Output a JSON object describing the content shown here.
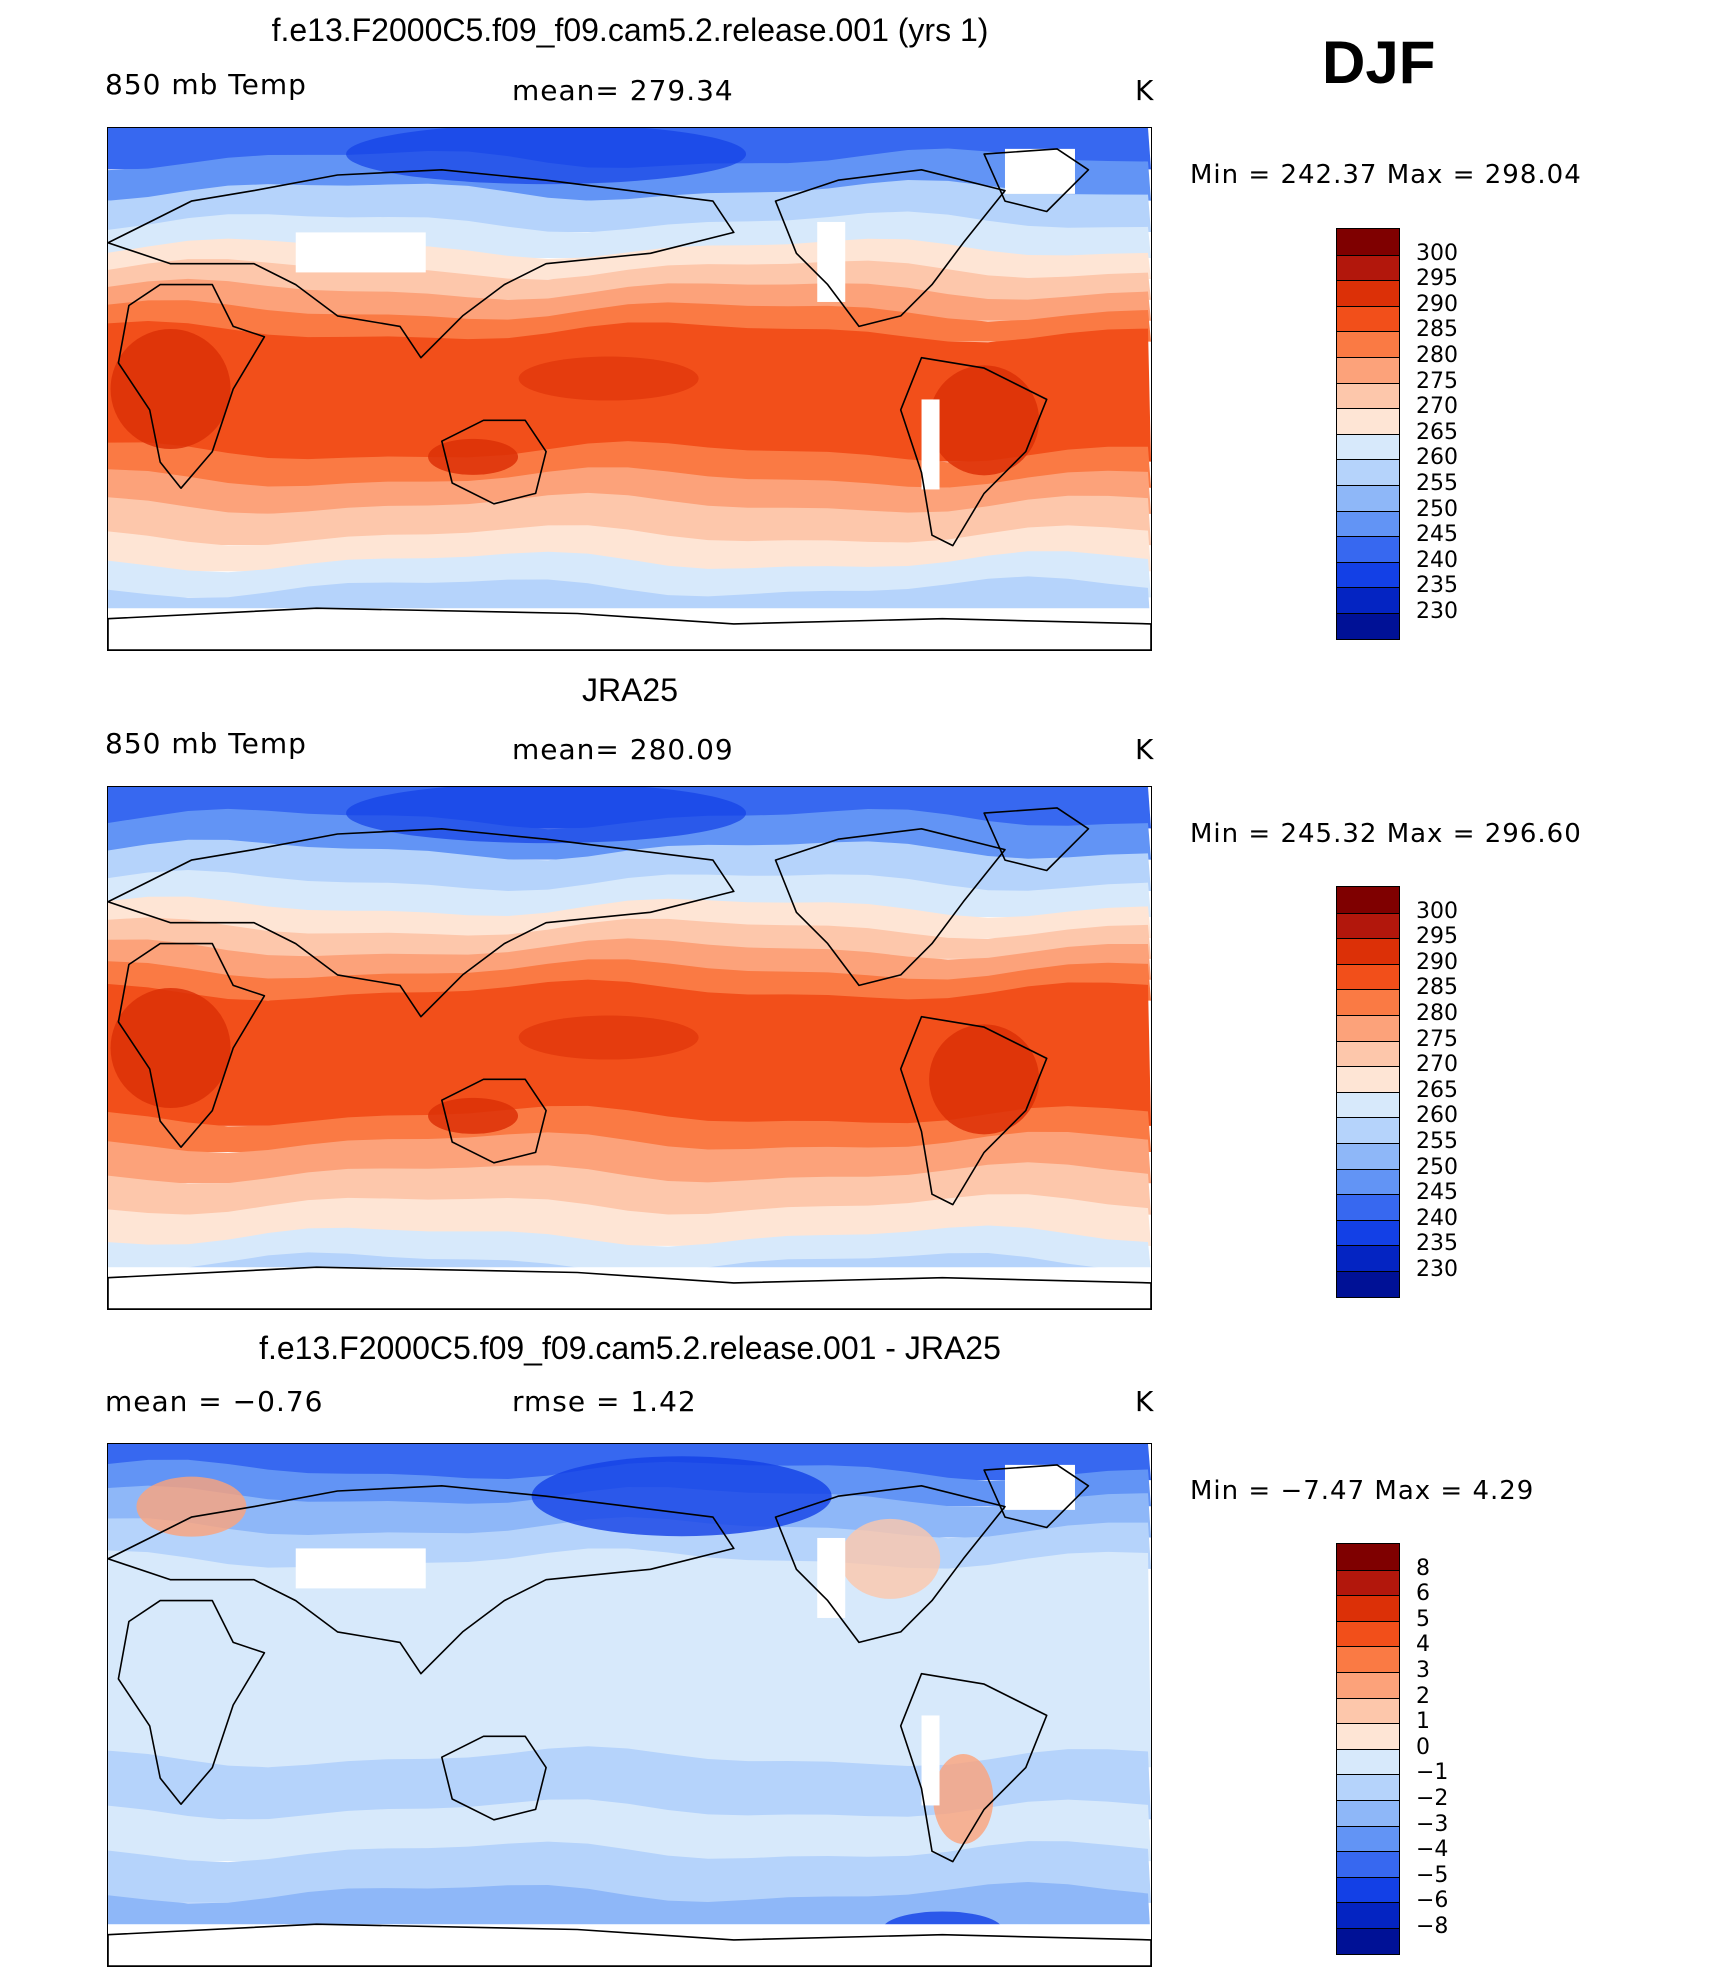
{
  "season": "DJF",
  "colors": {
    "temp_scale": [
      "#7f0000",
      "#b2170c",
      "#dc3007",
      "#f24f1a",
      "#fa7a44",
      "#fca27a",
      "#fdc7ab",
      "#fee5d5",
      "#d7e9fb",
      "#b5d3fb",
      "#8eb7f8",
      "#6294f5",
      "#3768f0",
      "#1340e6",
      "#0424c2",
      "#001196"
    ],
    "diff_scale": [
      "#7f0000",
      "#b2170c",
      "#dc3007",
      "#f24f1a",
      "#fa7a44",
      "#fca27a",
      "#fdc7ab",
      "#fee5d5",
      "#d7e9fb",
      "#b5d3fb",
      "#8eb7f8",
      "#6294f5",
      "#3768f0",
      "#1340e6",
      "#0424c2",
      "#001196"
    ]
  },
  "panels": [
    {
      "title": "f.e13.F2000C5.f09_f09.cam5.2.release.001 (yrs 1)",
      "left_label": "850 mb Temp",
      "center_label": "mean= 279.34",
      "units": "K",
      "min_max": "Min = 242.37 Max = 298.04",
      "kind": "temp"
    },
    {
      "title": "JRA25",
      "left_label": "850 mb Temp",
      "center_label": "mean= 280.09",
      "units": "K",
      "min_max": "Min = 245.32 Max = 296.60",
      "kind": "temp"
    },
    {
      "title": "f.e13.F2000C5.f09_f09.cam5.2.release.001 - JRA25",
      "left_label": "mean =   −0.76",
      "center_label": "rmse =     1.42",
      "units": "K",
      "min_max": "Min =   −7.47 Max =     4.29",
      "kind": "diff"
    }
  ],
  "chart_data": [
    {
      "type": "heatmap",
      "title": "f.e13.F2000C5.f09_f09.cam5.2.release.001 (yrs 1)",
      "variable": "850 mb Temp",
      "units": "K",
      "mean": 279.34,
      "min": 242.37,
      "max": 298.04,
      "colorbar_levels": [
        300,
        295,
        290,
        285,
        280,
        275,
        270,
        265,
        260,
        255,
        250,
        245,
        240,
        235,
        230
      ]
    },
    {
      "type": "heatmap",
      "title": "JRA25",
      "variable": "850 mb Temp",
      "units": "K",
      "mean": 280.09,
      "min": 245.32,
      "max": 296.6,
      "colorbar_levels": [
        300,
        295,
        290,
        285,
        280,
        275,
        270,
        265,
        260,
        255,
        250,
        245,
        240,
        235,
        230
      ]
    },
    {
      "type": "heatmap",
      "title": "f.e13.F2000C5.f09_f09.cam5.2.release.001 - JRA25",
      "units": "K",
      "mean": -0.76,
      "rmse": 1.42,
      "min": -7.47,
      "max": 4.29,
      "colorbar_levels": [
        "8",
        "6",
        "5",
        "4",
        "3",
        "2",
        "1",
        "0",
        "−1",
        "−2",
        "−3",
        "−4",
        "−5",
        "−6",
        "−8"
      ]
    }
  ]
}
